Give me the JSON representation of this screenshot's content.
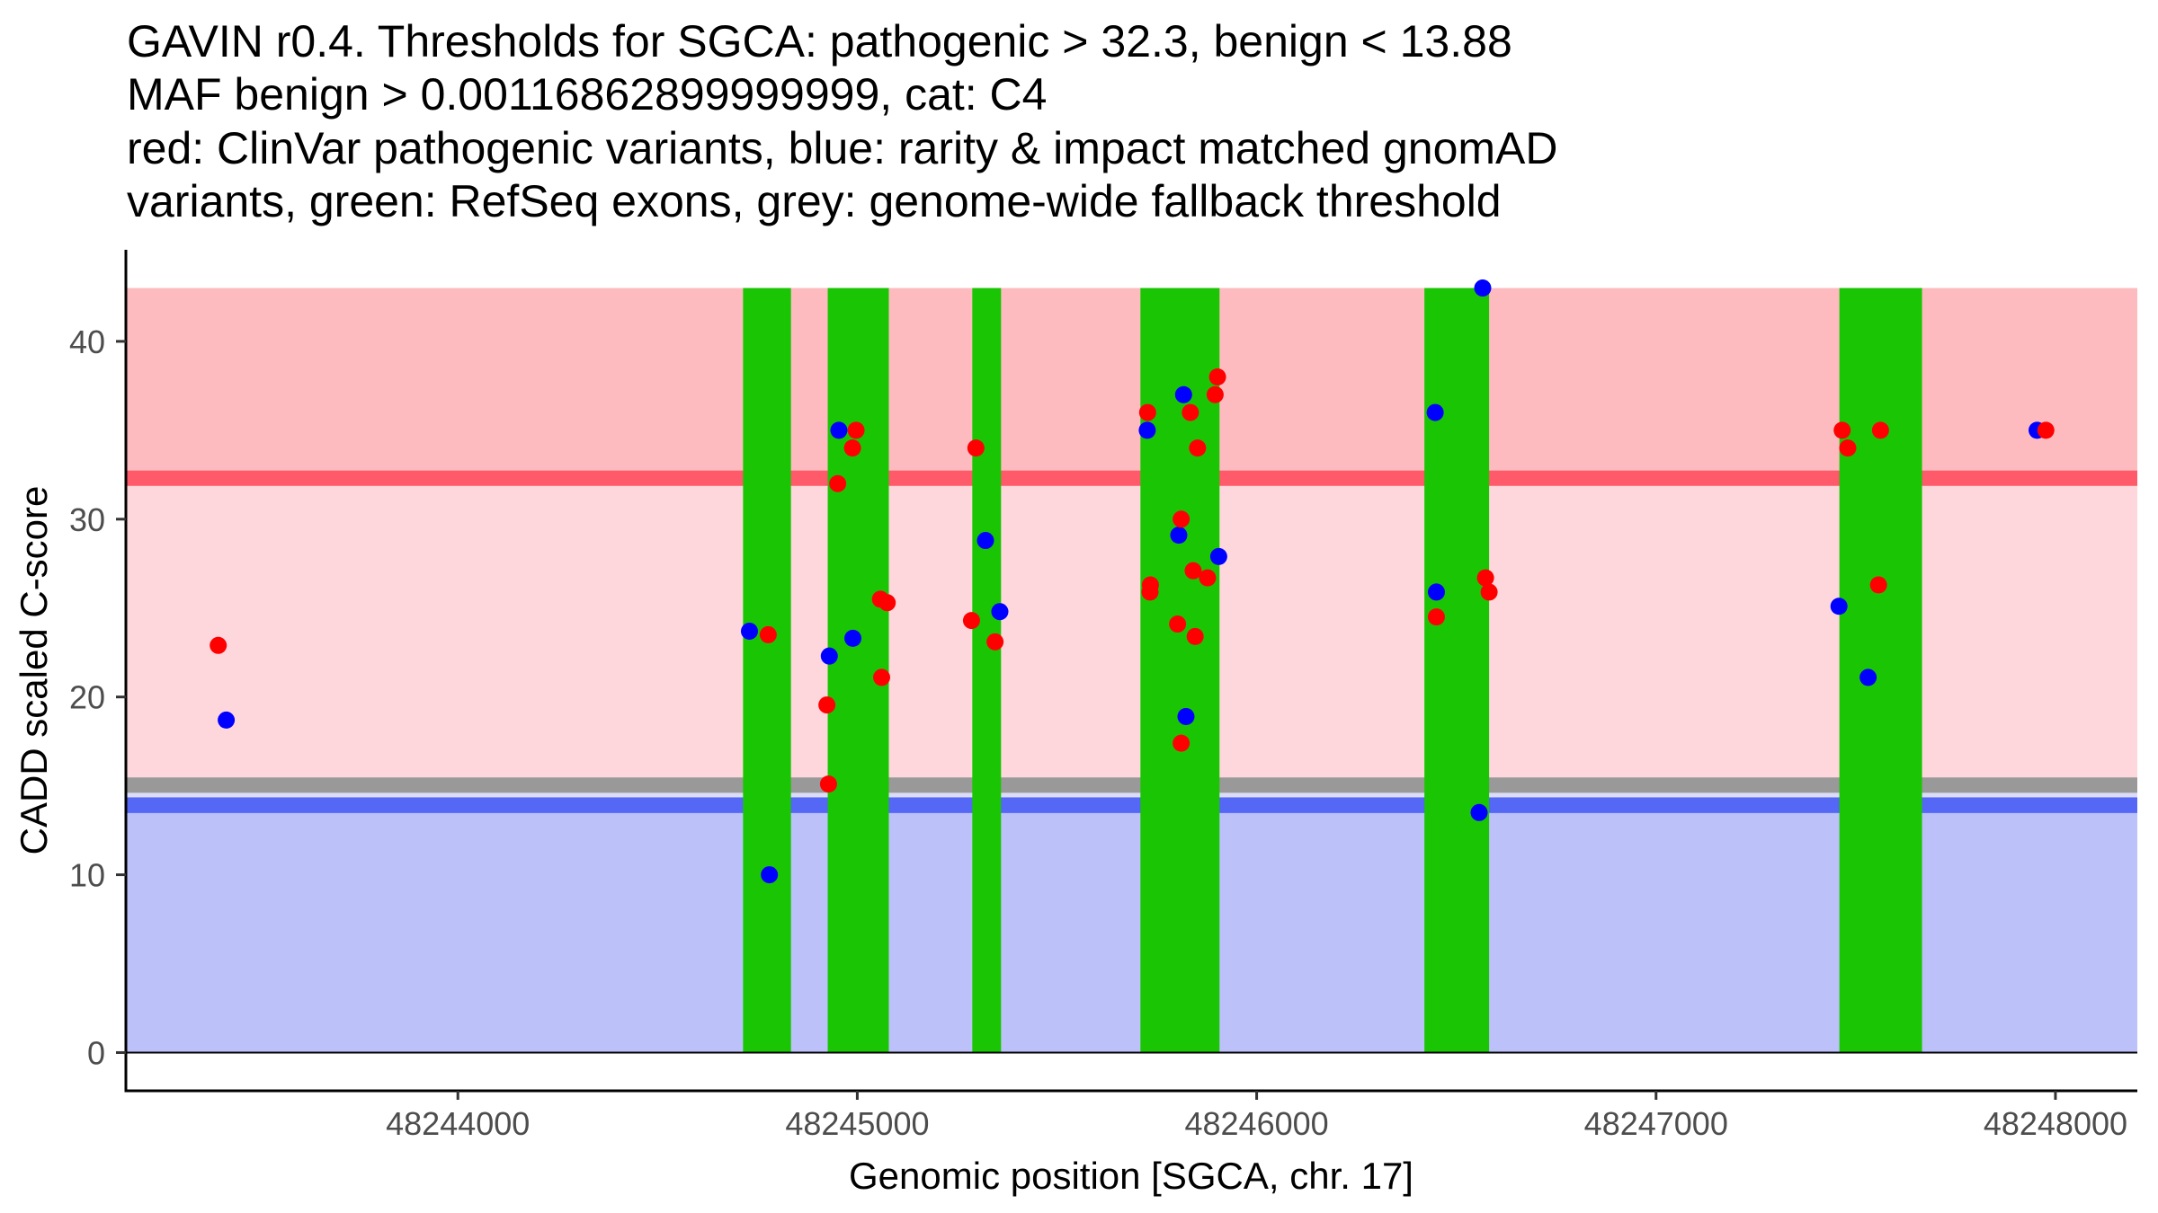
{
  "chart_data": {
    "type": "scatter",
    "title_lines": [
      "GAVIN r0.4. Thresholds for SGCA: pathogenic > 32.3, benign < 13.88",
      "MAF benign > 0.00116862899999999, cat: C4",
      "red: ClinVar pathogenic variants, blue: rarity & impact matched gnomAD",
      "variants, green: RefSeq exons, grey: genome-wide fallback threshold"
    ],
    "xlabel": "Genomic position [SGCA, chr. 17]",
    "ylabel": "CADD scaled C-score",
    "xlim": [
      48243171,
      48248205
    ],
    "ylim": [
      -2.15,
      45.15
    ],
    "x_ticks": [
      48244000,
      48245000,
      48246000,
      48247000,
      48248000
    ],
    "x_tick_labels": [
      "48244000",
      "48245000",
      "48246000",
      "48247000",
      "48248000"
    ],
    "y_ticks": [
      0,
      10,
      20,
      30,
      40
    ],
    "y_tick_labels": [
      "0",
      "10",
      "20",
      "30",
      "40"
    ],
    "grid": false,
    "legend": "none",
    "thresholds": {
      "pathogenic": 32.3,
      "benign": 13.88,
      "genome_wide_fallback": 15.05,
      "max_score": 43.0
    },
    "bands": [
      {
        "name": "benign-region",
        "from": 0,
        "to": 13.47,
        "color": "#bcc1fa"
      },
      {
        "name": "benign-threshold-line",
        "from": 13.47,
        "to": 14.36,
        "color": "#5467f5"
      },
      {
        "name": "benign-gap",
        "from": 14.36,
        "to": 14.61,
        "color": "#dadcf8"
      },
      {
        "name": "fallback-threshold-band",
        "from": 14.61,
        "to": 15.48,
        "color": "#999999"
      },
      {
        "name": "intermediate-region",
        "from": 15.48,
        "to": 31.87,
        "color": "#fed7dc"
      },
      {
        "name": "pathogenic-threshold-line",
        "from": 31.87,
        "to": 32.74,
        "color": "#fe5a69"
      },
      {
        "name": "pathogenic-region",
        "from": 32.74,
        "to": 43.0,
        "color": "#fdbbc0"
      }
    ],
    "exons": {
      "color": "#1ac603",
      "ranges": [
        [
          48244714,
          48244834
        ],
        [
          48244926,
          48245079
        ],
        [
          48245288,
          48245360
        ],
        [
          48245709,
          48245907
        ],
        [
          48246420,
          48246582
        ],
        [
          48247459,
          48247666
        ]
      ]
    },
    "series": [
      {
        "name": "gnomAD rarity & impact matched variants",
        "color": "#0000ff",
        "points": [
          [
            48243420,
            18.7
          ],
          [
            48244730,
            23.7
          ],
          [
            48244780,
            10.0
          ],
          [
            48244954,
            35.0
          ],
          [
            48244989,
            23.3
          ],
          [
            48244930,
            22.3
          ],
          [
            48245321,
            28.8
          ],
          [
            48245357,
            24.8
          ],
          [
            48245817,
            37.0
          ],
          [
            48245726,
            35.0
          ],
          [
            48245805,
            29.1
          ],
          [
            48245905,
            27.9
          ],
          [
            48245823,
            18.9
          ],
          [
            48246566,
            43.0
          ],
          [
            48246447,
            36.0
          ],
          [
            48246450,
            25.9
          ],
          [
            48246557,
            13.5
          ],
          [
            48247954,
            35.0
          ],
          [
            48247458,
            25.1
          ],
          [
            48247531,
            21.1
          ]
        ]
      },
      {
        "name": "ClinVar pathogenic variants",
        "color": "#ff0000",
        "points": [
          [
            48243400,
            22.9
          ],
          [
            48244777,
            23.5
          ],
          [
            48244997,
            35.0
          ],
          [
            48244988,
            34.0
          ],
          [
            48244951,
            32.0
          ],
          [
            48245058,
            25.5
          ],
          [
            48245075,
            25.3
          ],
          [
            48245061,
            21.1
          ],
          [
            48244924,
            19.55
          ],
          [
            48244928,
            15.1
          ],
          [
            48245297,
            34.0
          ],
          [
            48245286,
            24.3
          ],
          [
            48245345,
            23.1
          ],
          [
            48245902,
            38.0
          ],
          [
            48245896,
            37.0
          ],
          [
            48245727,
            36.0
          ],
          [
            48245834,
            36.0
          ],
          [
            48245852,
            34.0
          ],
          [
            48245811,
            30.0
          ],
          [
            48245841,
            27.1
          ],
          [
            48245877,
            26.7
          ],
          [
            48245734,
            26.3
          ],
          [
            48245733,
            25.9
          ],
          [
            48245802,
            24.1
          ],
          [
            48245846,
            23.4
          ],
          [
            48245811,
            17.4
          ],
          [
            48246573,
            26.7
          ],
          [
            48246582,
            25.9
          ],
          [
            48246450,
            24.5
          ],
          [
            48247466,
            35.0
          ],
          [
            48247562,
            35.0
          ],
          [
            48247480,
            34.0
          ],
          [
            48247976,
            35.0
          ],
          [
            48247557,
            26.3
          ]
        ]
      }
    ],
    "zero_line": 0
  }
}
